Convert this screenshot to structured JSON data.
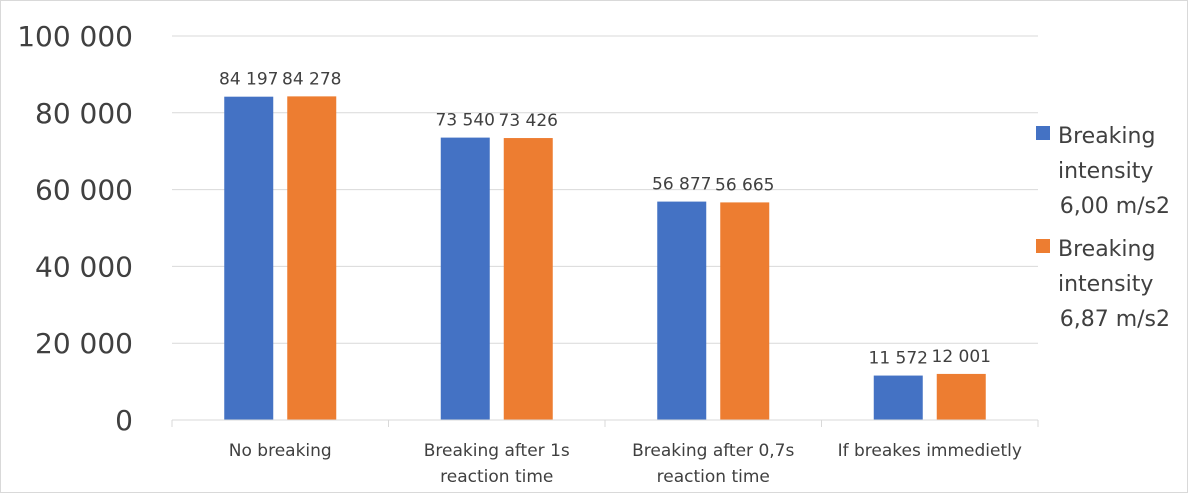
{
  "chart_data": {
    "type": "bar",
    "title": "",
    "xlabel": "",
    "ylabel": "",
    "categories": [
      [
        "No breaking"
      ],
      [
        "Breaking after 1s",
        "reaction time"
      ],
      [
        "Breaking after 0,7s",
        "reaction time"
      ],
      [
        "If breakes immedietly"
      ]
    ],
    "series": [
      {
        "name_lines": [
          "Breaking",
          "intensity",
          "6,00 m/s2"
        ],
        "color": "#4472C4",
        "values": [
          84197,
          73540,
          56877,
          11572
        ],
        "labels": [
          "84 197",
          "73 540",
          "56 877",
          "11 572"
        ]
      },
      {
        "name_lines": [
          "Breaking",
          "intensity",
          "6,87 m/s2"
        ],
        "color": "#ED7D31",
        "values": [
          84278,
          73426,
          56665,
          12001
        ],
        "labels": [
          "84 278",
          "73 426",
          "56 665",
          "12 001"
        ]
      }
    ],
    "ylim": [
      0,
      100000
    ],
    "yticks": [
      0,
      20000,
      40000,
      60000,
      80000,
      100000
    ],
    "ytick_labels": [
      "0",
      "20 000",
      "40 000",
      "60 000",
      "80 000",
      "100 000"
    ],
    "grid": true,
    "legend": "right"
  }
}
